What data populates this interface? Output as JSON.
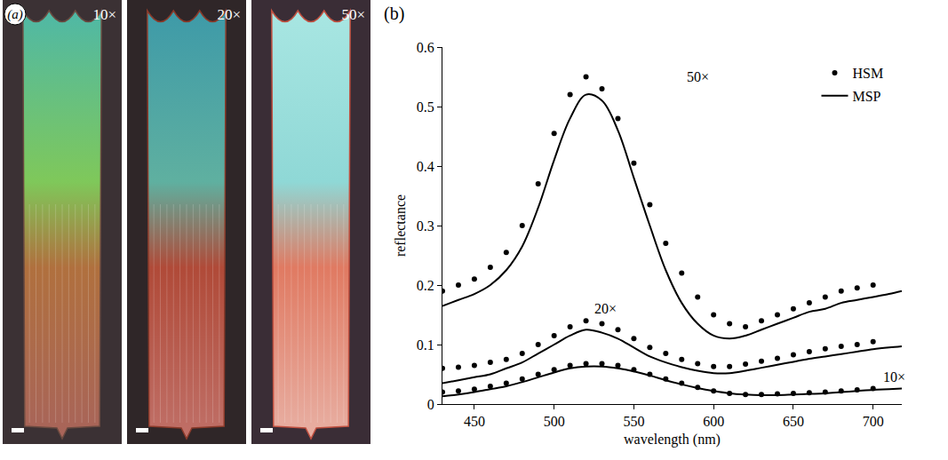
{
  "panel_a": {
    "label": "(a)",
    "images": [
      "10×",
      "20×",
      "50×"
    ]
  },
  "chart_data": {
    "type": "line",
    "panel_label": "(b)",
    "x_label": "wavelength (nm)",
    "y_label": "reflectance",
    "xlim": [
      430,
      718
    ],
    "xticks": [
      450,
      500,
      550,
      600,
      650,
      700
    ],
    "ylim": [
      0,
      0.6
    ],
    "yticks": [
      0,
      0.1,
      0.2,
      0.3,
      0.4,
      0.5,
      0.6
    ],
    "grid": false,
    "legend": "top right",
    "annotations": [
      {
        "text": "50×",
        "x": 590,
        "y": 0.55
      },
      {
        "text": "20×",
        "x": 532,
        "y": 0.16
      },
      {
        "text": "10×",
        "x": 713,
        "y": 0.045
      }
    ],
    "series": [
      {
        "name": "HSM",
        "type": "scatter",
        "marker": "circle",
        "color": "#000000",
        "x": [
          430,
          440,
          450,
          460,
          470,
          480,
          490,
          500,
          510,
          520,
          530,
          540,
          550,
          560,
          570,
          580,
          590,
          600,
          610,
          620,
          630,
          640,
          650,
          660,
          670,
          680,
          690,
          700
        ],
        "values": [
          0.19,
          0.2,
          0.21,
          0.23,
          0.255,
          0.3,
          0.37,
          0.455,
          0.52,
          0.55,
          0.53,
          0.48,
          0.405,
          0.335,
          0.27,
          0.22,
          0.18,
          0.15,
          0.135,
          0.13,
          0.14,
          0.15,
          0.16,
          0.17,
          0.18,
          0.19,
          0.195,
          0.2
        ]
      },
      {
        "name": "MSP",
        "type": "line",
        "line_style": "solid",
        "color": "#000000",
        "x": [
          430,
          440,
          450,
          460,
          470,
          480,
          490,
          500,
          510,
          520,
          530,
          540,
          550,
          560,
          570,
          580,
          590,
          600,
          610,
          620,
          630,
          640,
          650,
          660,
          670,
          680,
          690,
          700,
          710,
          718
        ],
        "values": [
          0.165,
          0.175,
          0.185,
          0.2,
          0.225,
          0.265,
          0.33,
          0.41,
          0.48,
          0.52,
          0.51,
          0.46,
          0.38,
          0.3,
          0.225,
          0.17,
          0.135,
          0.115,
          0.11,
          0.115,
          0.125,
          0.135,
          0.145,
          0.155,
          0.16,
          0.17,
          0.175,
          0.18,
          0.185,
          0.19
        ]
      },
      {
        "name": "HSM",
        "type": "scatter",
        "marker": "circle",
        "color": "#000000",
        "x": [
          430,
          440,
          450,
          460,
          470,
          480,
          490,
          500,
          510,
          520,
          530,
          540,
          550,
          560,
          570,
          580,
          590,
          600,
          610,
          620,
          630,
          640,
          650,
          660,
          670,
          680,
          690,
          700
        ],
        "values": [
          0.06,
          0.062,
          0.065,
          0.07,
          0.075,
          0.085,
          0.1,
          0.115,
          0.13,
          0.14,
          0.135,
          0.125,
          0.11,
          0.095,
          0.085,
          0.075,
          0.068,
          0.063,
          0.063,
          0.067,
          0.072,
          0.077,
          0.083,
          0.088,
          0.093,
          0.097,
          0.1,
          0.105
        ]
      },
      {
        "name": "MSP",
        "type": "line",
        "line_style": "solid",
        "color": "#000000",
        "x": [
          430,
          440,
          450,
          460,
          470,
          480,
          490,
          500,
          510,
          520,
          530,
          540,
          550,
          560,
          570,
          580,
          590,
          600,
          610,
          620,
          630,
          640,
          650,
          660,
          670,
          680,
          690,
          700,
          710,
          718
        ],
        "values": [
          0.035,
          0.04,
          0.045,
          0.05,
          0.06,
          0.07,
          0.085,
          0.1,
          0.115,
          0.125,
          0.12,
          0.11,
          0.095,
          0.08,
          0.07,
          0.062,
          0.056,
          0.052,
          0.052,
          0.056,
          0.061,
          0.066,
          0.071,
          0.076,
          0.08,
          0.084,
          0.088,
          0.092,
          0.095,
          0.097
        ]
      },
      {
        "name": "HSM",
        "type": "scatter",
        "marker": "circle",
        "color": "#000000",
        "x": [
          430,
          440,
          450,
          460,
          470,
          480,
          490,
          500,
          510,
          520,
          530,
          540,
          550,
          560,
          570,
          580,
          590,
          600,
          610,
          620,
          630,
          640,
          650,
          660,
          670,
          680,
          690,
          700
        ],
        "values": [
          0.02,
          0.022,
          0.025,
          0.03,
          0.035,
          0.042,
          0.05,
          0.058,
          0.065,
          0.068,
          0.068,
          0.065,
          0.058,
          0.05,
          0.042,
          0.035,
          0.028,
          0.022,
          0.018,
          0.016,
          0.016,
          0.017,
          0.018,
          0.019,
          0.02,
          0.022,
          0.024,
          0.026
        ]
      },
      {
        "name": "MSP",
        "type": "line",
        "line_style": "solid",
        "color": "#000000",
        "x": [
          430,
          440,
          450,
          460,
          470,
          480,
          490,
          500,
          510,
          520,
          530,
          540,
          550,
          560,
          570,
          580,
          590,
          600,
          610,
          620,
          630,
          640,
          650,
          660,
          670,
          680,
          690,
          700,
          710,
          718
        ],
        "values": [
          0.013,
          0.016,
          0.02,
          0.025,
          0.03,
          0.037,
          0.045,
          0.053,
          0.06,
          0.063,
          0.063,
          0.06,
          0.055,
          0.048,
          0.04,
          0.033,
          0.027,
          0.022,
          0.018,
          0.016,
          0.015,
          0.015,
          0.016,
          0.017,
          0.018,
          0.02,
          0.022,
          0.024,
          0.025,
          0.026
        ]
      }
    ]
  }
}
